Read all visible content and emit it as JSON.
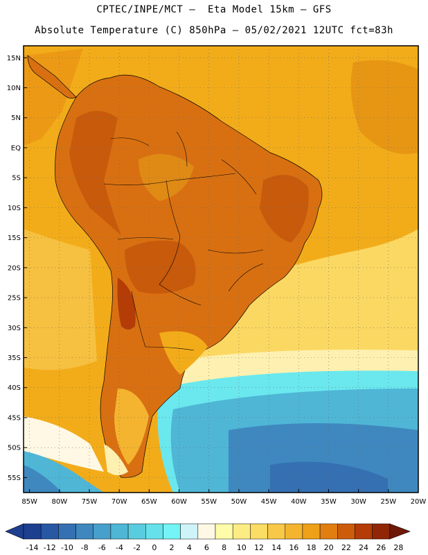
{
  "header": {
    "line1": "CPTEC/INPE/MCT –  Eta Model 15km – GFS",
    "line2": "Absolute Temperature (C) 850hPa – 05/02/2021 12UTC fct=83h"
  },
  "axes": {
    "lat_labels": [
      "15N",
      "10N",
      "5N",
      "EQ",
      "5S",
      "10S",
      "15S",
      "20S",
      "25S",
      "30S",
      "35S",
      "40S",
      "45S",
      "50S",
      "55S"
    ],
    "lat_values": [
      15,
      10,
      5,
      0,
      -5,
      -10,
      -15,
      -20,
      -25,
      -30,
      -35,
      -40,
      -45,
      -50,
      -55
    ],
    "lon_labels": [
      "85W",
      "80W",
      "75W",
      "70W",
      "65W",
      "60W",
      "55W",
      "50W",
      "45W",
      "40W",
      "35W",
      "30W",
      "25W",
      "20W"
    ],
    "lon_values": [
      -85,
      -80,
      -75,
      -70,
      -65,
      -60,
      -55,
      -50,
      -45,
      -40,
      -35,
      -30,
      -25,
      -20
    ],
    "lat_range": [
      -57.5,
      17
    ],
    "lon_range": [
      -86,
      -20
    ],
    "grid": "dotted"
  },
  "colorbar": {
    "ticks": [
      "-14",
      "-12",
      "-10",
      "-8",
      "-6",
      "-4",
      "-2",
      "0",
      "2",
      "4",
      "6",
      "8",
      "10",
      "12",
      "14",
      "16",
      "18",
      "20",
      "22",
      "24",
      "26",
      "28"
    ],
    "colors": [
      "#1d3f8f",
      "#2858a3",
      "#3470b2",
      "#3e88bf",
      "#46a0cb",
      "#4fb6d6",
      "#5accdf",
      "#66e1ea",
      "#74f4f4",
      "#cef4fa",
      "#fef8e4",
      "#fefca8",
      "#fcec84",
      "#fbdc64",
      "#f8c848",
      "#f4b430",
      "#eda018",
      "#e07e10",
      "#cd5c0a",
      "#b43c06",
      "#902605",
      "#6e1808"
    ]
  },
  "colors": {
    "warm_ocean": "#f2ac1a",
    "hot_land": "#d87012",
    "very_hot": "#c85a0c",
    "pale": "#fbd862",
    "cold_ocean": "#46b6d6",
    "coldest": "#3a82bc",
    "cyan": "#6ae8ee"
  }
}
